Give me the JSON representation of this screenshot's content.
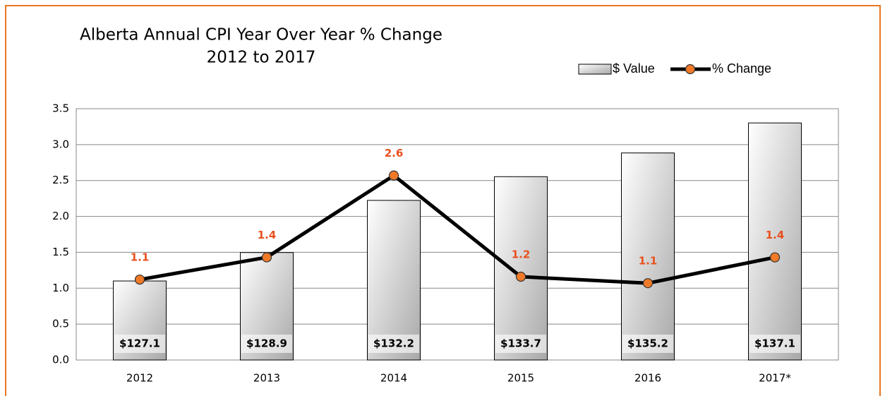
{
  "chart_data": {
    "type": "bar",
    "title": "Alberta Annual CPI Year Over Year % Change",
    "subtitle": "2012 to 2017",
    "categories": [
      "2012",
      "2013",
      "2014",
      "2015",
      "2016",
      "2017*"
    ],
    "series": [
      {
        "name": "$ Value",
        "type": "bar",
        "axis": "y2",
        "color": "#d4d4d4",
        "values": [
          127.1,
          128.9,
          132.2,
          133.7,
          135.2,
          137.1
        ],
        "value_labels": [
          "$127.1",
          "$128.9",
          "$132.2",
          "$133.7",
          "$135.2",
          "$137.1"
        ]
      },
      {
        "name": "% Change",
        "type": "line",
        "color": "#000000",
        "marker_color": "#f07a28",
        "values": [
          1.12,
          1.43,
          2.57,
          1.16,
          1.07,
          1.43
        ],
        "value_labels": [
          "1.1",
          "1.4",
          "2.6",
          "1.2",
          "1.1",
          "1.4"
        ]
      }
    ],
    "ylim": [
      0,
      3.5
    ],
    "yticks": [
      {
        "value": 0,
        "label": "0.0"
      },
      {
        "value": 0.5,
        "label": "0.5"
      },
      {
        "value": 1,
        "label": "1.0"
      },
      {
        "value": 1.5,
        "label": "1.5"
      },
      {
        "value": 2,
        "label": "2.0"
      },
      {
        "value": 2.5,
        "label": "2.5"
      },
      {
        "value": 3,
        "label": "3.0"
      },
      {
        "value": 3.5,
        "label": "3.5"
      }
    ],
    "y2lim": [
      122.1,
      138.0
    ],
    "grid": true,
    "legend": "top-right"
  }
}
